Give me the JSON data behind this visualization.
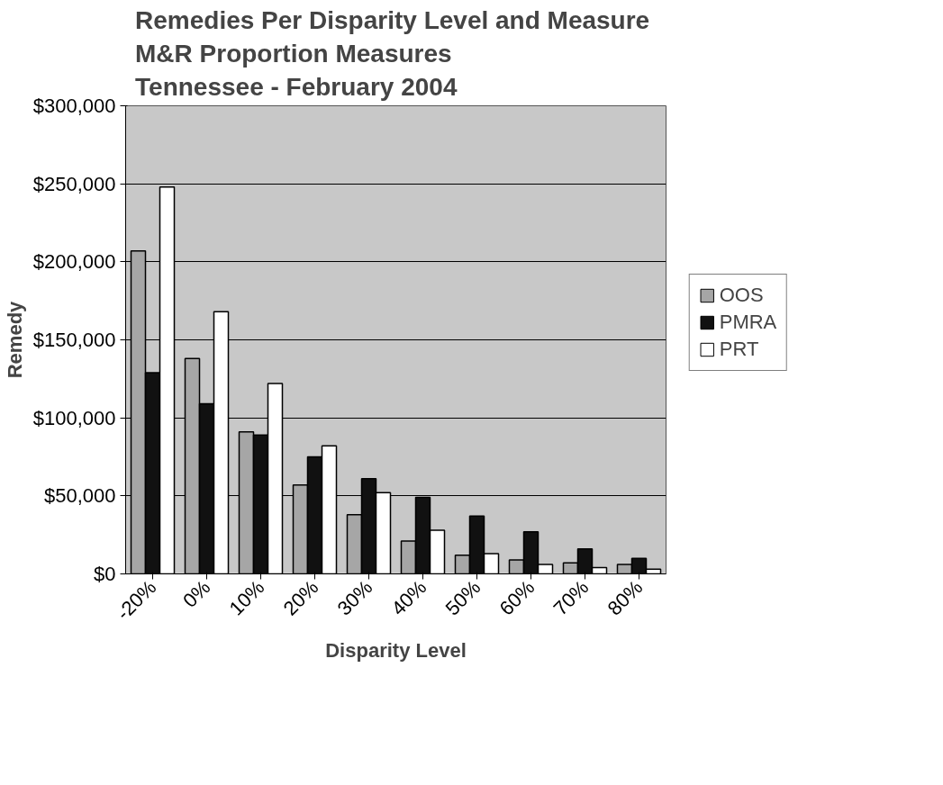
{
  "chart_data": {
    "type": "bar",
    "title": "Remedies Per Disparity Level and  Measure\nM&R Proportion Measures\nTennessee - February 2004",
    "xlabel": "Disparity Level",
    "ylabel": "Remedy",
    "categories": [
      "-20%",
      "0%",
      "10%",
      "20%",
      "30%",
      "40%",
      "50%",
      "60%",
      "70%",
      "80%"
    ],
    "series": [
      {
        "name": "OOS",
        "color": "#a6a6a6",
        "values": [
          207000,
          138000,
          91000,
          57000,
          38000,
          21000,
          12000,
          9000,
          7000,
          6000
        ]
      },
      {
        "name": "PMRA",
        "color": "#111111",
        "values": [
          129000,
          109000,
          89000,
          75000,
          61000,
          49000,
          37000,
          27000,
          16000,
          10000
        ]
      },
      {
        "name": "PRT",
        "color": "#ffffff",
        "values": [
          248000,
          168000,
          122000,
          82000,
          52000,
          28000,
          13000,
          6000,
          4000,
          3000
        ]
      }
    ],
    "ylim": [
      0,
      300000
    ],
    "yticks": [
      {
        "value": 0,
        "label": "$0"
      },
      {
        "value": 50000,
        "label": "$50,000"
      },
      {
        "value": 100000,
        "label": "$100,000"
      },
      {
        "value": 150000,
        "label": "$150,000"
      },
      {
        "value": 200000,
        "label": "$200,000"
      },
      {
        "value": 250000,
        "label": "$250,000"
      },
      {
        "value": 300000,
        "label": "$300,000"
      }
    ],
    "grid": "y",
    "legend": "right"
  }
}
